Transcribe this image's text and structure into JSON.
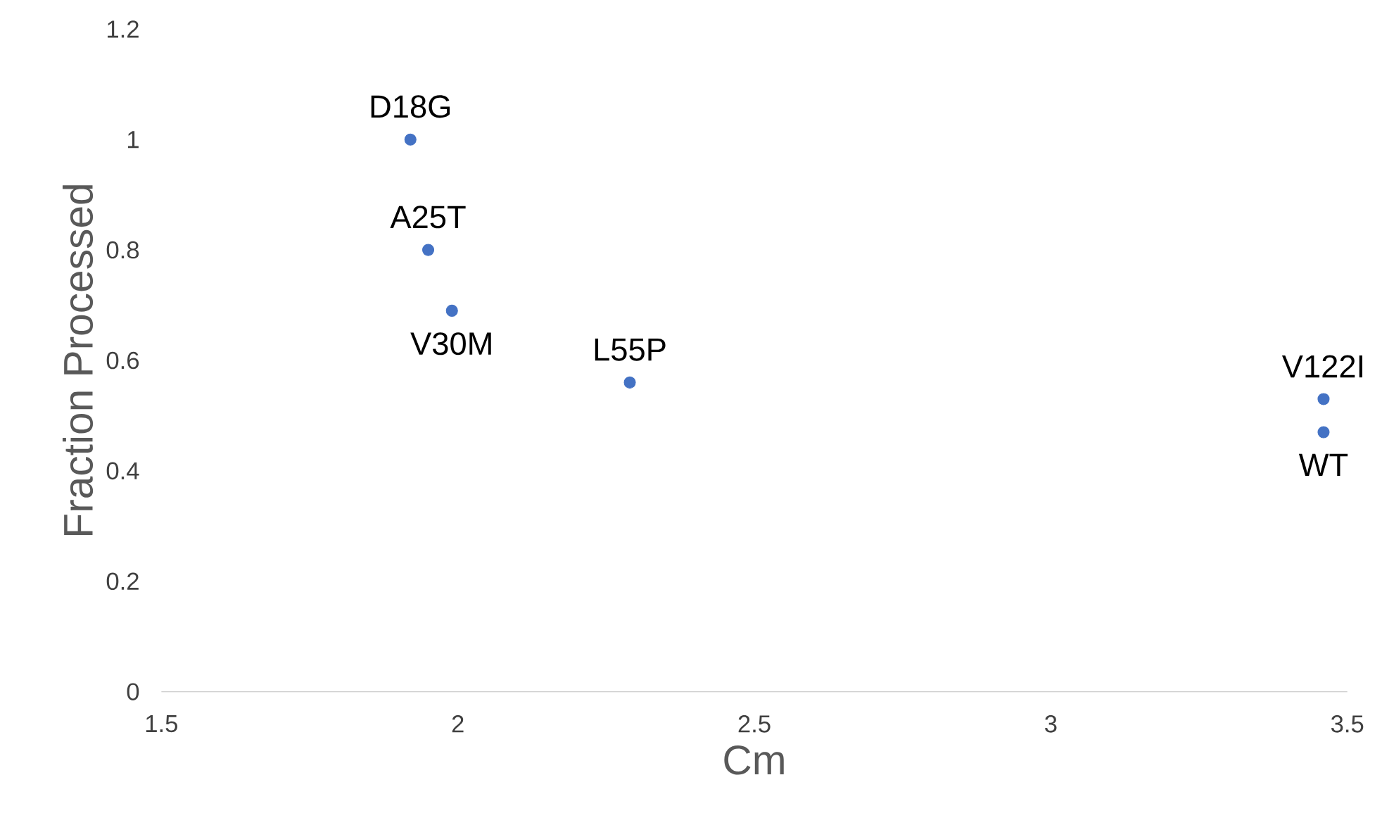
{
  "chart_data": {
    "type": "scatter",
    "xlabel": "Cm",
    "ylabel": "Fraction Processed",
    "x": [
      1.92,
      1.95,
      1.99,
      2.29,
      3.46,
      3.46
    ],
    "values": [
      1.0,
      0.8,
      0.69,
      0.56,
      0.53,
      0.47
    ],
    "color": "#4472c4",
    "marker": "circle",
    "grid": false,
    "xlim": [
      1.5,
      3.5
    ],
    "xticks": [
      1.5,
      2,
      2.5,
      3,
      3.5
    ],
    "ylim": [
      0,
      1.2
    ],
    "yticks": [
      0,
      0.2,
      0.4,
      0.6,
      0.8,
      1,
      1.2
    ],
    "annotations": [
      {
        "text": "D18G",
        "x": 1.92,
        "y": 1.0
      },
      {
        "text": "A25T",
        "x": 1.95,
        "y": 0.8
      },
      {
        "text": "V30M",
        "x": 1.99,
        "y": 0.69
      },
      {
        "text": "L55P",
        "x": 2.29,
        "y": 0.56
      },
      {
        "text": "V122I",
        "x": 3.46,
        "y": 0.53
      },
      {
        "text": "WT",
        "x": 3.46,
        "y": 0.47
      }
    ]
  }
}
